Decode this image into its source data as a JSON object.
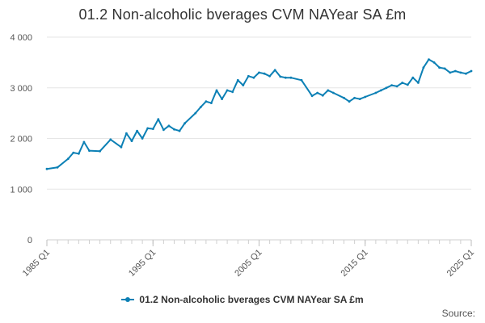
{
  "chart_data": {
    "type": "line",
    "title": "01.2 Non-alcoholic bverages CVM NAYear SA £m",
    "xlabel": "",
    "ylabel": "",
    "x_tick_labels": [
      "1985 Q1",
      "1995 Q1",
      "2005 Q1",
      "2015 Q1",
      "2025 Q1"
    ],
    "y_tick_labels": [
      "0",
      "1 000",
      "2 000",
      "3 000",
      "4 000"
    ],
    "ylim": [
      0,
      4000
    ],
    "grid": true,
    "legend_position": "bottom",
    "series": [
      {
        "name": "01.2 Non-alcoholic bverages CVM NAYear SA £m",
        "color": "#0c80b5",
        "x": [
          "1985 Q1",
          "1986 Q1",
          "1987 Q1",
          "1987 Q3",
          "1988 Q1",
          "1988 Q3",
          "1989 Q1",
          "1990 Q1",
          "1991 Q1",
          "1992 Q1",
          "1992 Q3",
          "1993 Q1",
          "1993 Q3",
          "1994 Q1",
          "1994 Q3",
          "1995 Q1",
          "1995 Q3",
          "1996 Q1",
          "1996 Q3",
          "1997 Q1",
          "1997 Q3",
          "1998 Q1",
          "1999 Q1",
          "1999 Q3",
          "2000 Q1",
          "2000 Q3",
          "2001 Q1",
          "2001 Q3",
          "2002 Q1",
          "2002 Q3",
          "2003 Q1",
          "2003 Q3",
          "2004 Q1",
          "2004 Q3",
          "2005 Q1",
          "2005 Q3",
          "2006 Q1",
          "2006 Q3",
          "2007 Q1",
          "2007 Q3",
          "2008 Q1",
          "2009 Q1",
          "2010 Q1",
          "2010 Q3",
          "2011 Q1",
          "2011 Q3",
          "2012 Q1",
          "2013 Q1",
          "2013 Q3",
          "2014 Q1",
          "2014 Q3",
          "2015 Q1",
          "2016 Q1",
          "2016 Q3",
          "2017 Q1",
          "2017 Q3",
          "2018 Q1",
          "2018 Q3",
          "2019 Q1",
          "2019 Q3",
          "2020 Q1",
          "2020 Q3",
          "2021 Q1",
          "2021 Q3",
          "2022 Q1",
          "2022 Q3",
          "2023 Q1",
          "2023 Q3",
          "2024 Q1",
          "2024 Q3",
          "2025 Q1"
        ],
        "values": [
          1400,
          1430,
          1600,
          1720,
          1700,
          1930,
          1760,
          1750,
          1980,
          1830,
          2100,
          1950,
          2150,
          2000,
          2200,
          2190,
          2380,
          2170,
          2250,
          2180,
          2150,
          2300,
          2500,
          2620,
          2730,
          2700,
          2950,
          2780,
          2950,
          2920,
          3150,
          3050,
          3230,
          3200,
          3300,
          3280,
          3230,
          3350,
          3220,
          3200,
          3200,
          3150,
          2840,
          2900,
          2850,
          2950,
          2900,
          2800,
          2730,
          2800,
          2780,
          2820,
          2900,
          2950,
          3000,
          3050,
          3030,
          3100,
          3060,
          3200,
          3100,
          3400,
          3560,
          3500,
          3400,
          3380,
          3300,
          3330,
          3300,
          3280,
          3330
        ]
      }
    ]
  },
  "source_text": "Source:"
}
